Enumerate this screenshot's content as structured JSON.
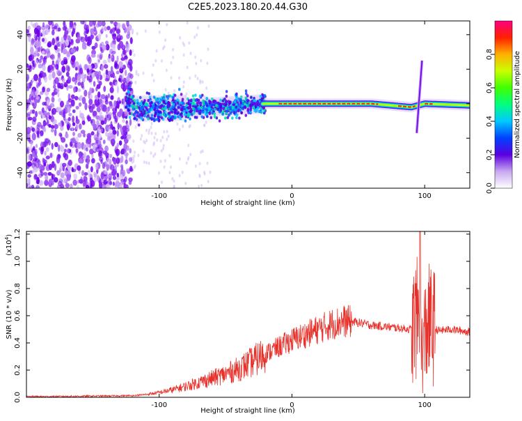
{
  "title": "C2E5.2023.180.20.44.G30",
  "chart_data": [
    {
      "type": "heatmap",
      "xlabel": "Height of straight line (km)",
      "ylabel": "Frequency (Hz)",
      "xlim": [
        -200,
        134
      ],
      "ylim": [
        -49,
        48
      ],
      "x_ticks": [
        -100,
        0,
        100
      ],
      "x_tick_labels": [
        "-100",
        "0",
        "100"
      ],
      "y_ticks": [
        -40,
        -20,
        0,
        20,
        40
      ],
      "y_tick_labels": [
        "-40",
        "-20",
        "0",
        "20",
        "40"
      ],
      "colorbar": {
        "label": "Normalized spectral amplitude",
        "range": [
          0,
          1
        ],
        "ticks": [
          0.0,
          0.2,
          0.4,
          0.6,
          0.8
        ],
        "tick_labels": [
          "0.0",
          "0.2",
          "0.4",
          "0.6",
          "0.8"
        ]
      },
      "features": {
        "noise_region_x": [
          -200,
          -120
        ],
        "band_center_hz_points": [
          [
            -120,
            -3
          ],
          [
            -60,
            -2
          ],
          [
            -20,
            0
          ],
          [
            0,
            0
          ],
          [
            60,
            0
          ],
          [
            90,
            -2
          ],
          [
            100,
            0
          ],
          [
            134,
            -1
          ]
        ],
        "spike": {
          "x": 96,
          "freq_range_hz": [
            -17,
            25
          ]
        }
      }
    },
    {
      "type": "line",
      "xlabel": "Height of straight line (km)",
      "ylabel": "SNR (10 * v/v)",
      "y_multiplier": "(x10",
      "y_multiplier_exp": "4",
      "y_multiplier_close": ")",
      "xlim": [
        -200,
        134
      ],
      "ylim": [
        0,
        1.22
      ],
      "x_ticks": [
        -100,
        0,
        100
      ],
      "x_tick_labels": [
        "-100",
        "0",
        "100"
      ],
      "y_ticks": [
        0.0,
        0.2,
        0.4,
        0.6,
        0.8,
        1.0,
        1.2
      ],
      "y_tick_labels": [
        "0.0",
        "0.2",
        "0.4",
        "0.6",
        "0.8",
        "1.0",
        "1.2"
      ],
      "series": [
        {
          "color": "#e8302a",
          "x": [
            -200,
            -180,
            -160,
            -140,
            -120,
            -110,
            -100,
            -90,
            -80,
            -70,
            -60,
            -50,
            -40,
            -30,
            -20,
            -10,
            0,
            10,
            20,
            30,
            40,
            50,
            60,
            70,
            80,
            90,
            95,
            98,
            102,
            110,
            120,
            134
          ],
          "y": [
            0.005,
            0.006,
            0.008,
            0.01,
            0.012,
            0.02,
            0.035,
            0.055,
            0.08,
            0.11,
            0.14,
            0.17,
            0.21,
            0.26,
            0.32,
            0.37,
            0.42,
            0.46,
            0.5,
            0.54,
            0.56,
            0.55,
            0.53,
            0.52,
            0.51,
            0.5,
            0.6,
            0.3,
            0.55,
            0.49,
            0.5,
            0.48
          ]
        }
      ]
    }
  ]
}
